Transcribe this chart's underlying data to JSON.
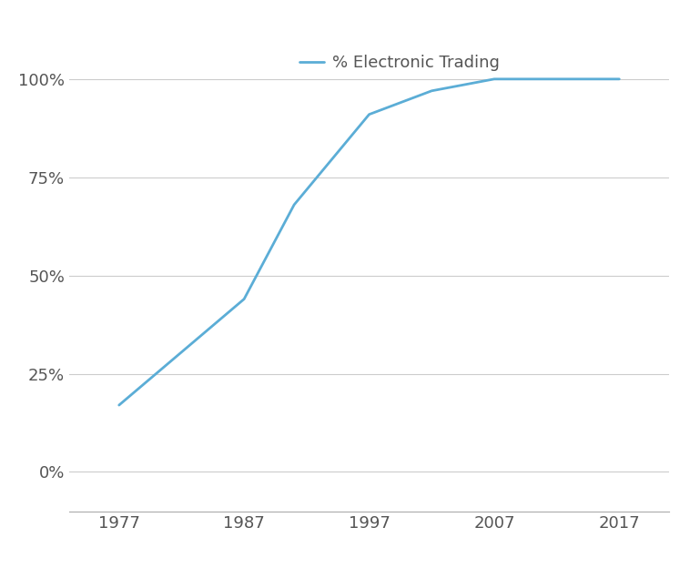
{
  "x": [
    1977,
    1987,
    1991,
    1997,
    2002,
    2007,
    2017
  ],
  "y": [
    0.17,
    0.44,
    0.68,
    0.91,
    0.97,
    1.0,
    1.0
  ],
  "line_color": "#5badd6",
  "line_width": 2.0,
  "legend_label": "% Electronic Trading",
  "yticks": [
    0.0,
    0.25,
    0.5,
    0.75,
    1.0
  ],
  "yticklabels": [
    "0%",
    "25%",
    "50%",
    "75%",
    "100%"
  ],
  "xticks": [
    1977,
    1987,
    1997,
    2007,
    2017
  ],
  "xlim": [
    1973,
    2021
  ],
  "ylim": [
    -0.1,
    1.1
  ],
  "grid_color": "#cccccc",
  "background_color": "#ffffff",
  "legend_fontsize": 13,
  "tick_fontsize": 13
}
